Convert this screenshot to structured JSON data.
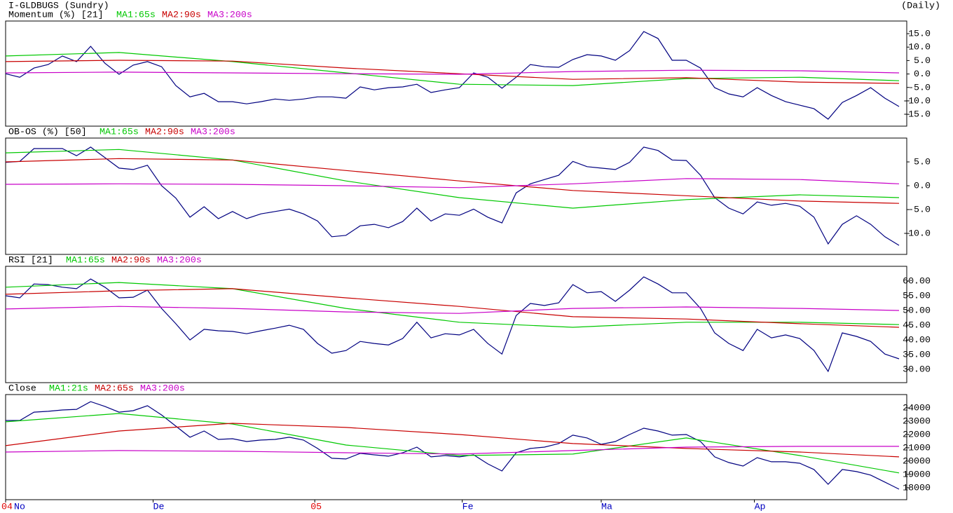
{
  "header": {
    "title": "I-GLDBUGS (Sundry)",
    "period": "(Daily)"
  },
  "chart_data": [
    {
      "type": "line",
      "title": "Momentum (%) [21]",
      "x": [
        0,
        1,
        2,
        3,
        4,
        5,
        6,
        7,
        8,
        9,
        10,
        11,
        12,
        13,
        14,
        15,
        16,
        17,
        18,
        19,
        20,
        21,
        22,
        23,
        24,
        25,
        26,
        27,
        28,
        29,
        30,
        31,
        32,
        33,
        34,
        35,
        36,
        37,
        38,
        39,
        40,
        41,
        42,
        43,
        44,
        45,
        46,
        47,
        48,
        49,
        50,
        51,
        52,
        53,
        54,
        55,
        56,
        57,
        58,
        59,
        60,
        61,
        62,
        63
      ],
      "xlim": [
        0,
        63
      ],
      "ylim": [
        -19.4,
        19.7
      ],
      "yticks": [
        {
          "value": 15,
          "label": "15.0"
        },
        {
          "value": 10,
          "label": "10.0"
        },
        {
          "value": 5,
          "label": "5.0"
        },
        {
          "value": 0,
          "label": "0.0"
        },
        {
          "value": -5,
          "label": "-5.0"
        },
        {
          "value": -10,
          "label": "-10.0"
        },
        {
          "value": -15,
          "label": "-15.0"
        }
      ],
      "series": [
        {
          "color": "#000080",
          "values": [
            0.1,
            -1.2,
            2.2,
            3.5,
            6.7,
            4.6,
            10.3,
            4.0,
            -0.1,
            3.3,
            4.6,
            2.7,
            -4.3,
            -8.5,
            -7.2,
            -10.3,
            -10.3,
            -11.1,
            -10.3,
            -9.3,
            -9.8,
            -9.3,
            -8.5,
            -8.5,
            -9.0,
            -4.8,
            -5.9,
            -5.1,
            -4.8,
            -3.8,
            -6.9,
            -5.9,
            -5.1,
            0.4,
            -1.2,
            -5.3,
            -1.2,
            3.5,
            2.7,
            2.5,
            5.4,
            7.2,
            6.7,
            5.1,
            8.7,
            15.8,
            13.2,
            5.1,
            5.1,
            2.2,
            -5.1,
            -7.4,
            -8.5,
            -5.1,
            -8.0,
            -10.3,
            -11.6,
            -12.9,
            -16.8,
            -10.6,
            -8.0,
            -5.1,
            -9.0,
            -12.1
          ]
        },
        {
          "name": "MA1:65s",
          "color": "#00c800",
          "x": [
            0,
            8,
            16,
            24,
            32,
            40,
            48,
            56,
            63
          ],
          "values": [
            6.7,
            8.0,
            4.6,
            0.4,
            -3.8,
            -4.3,
            -1.7,
            -1.2,
            -2.5
          ]
        },
        {
          "name": "MA2:90s",
          "color": "#c80000",
          "x": [
            0,
            8,
            16,
            24,
            32,
            40,
            48,
            56,
            63
          ],
          "values": [
            4.6,
            5.1,
            4.8,
            2.2,
            0.1,
            -2.0,
            -1.4,
            -3.0,
            -3.5
          ]
        },
        {
          "name": "MA3:200s",
          "color": "#c800c8",
          "x": [
            0,
            8,
            16,
            24,
            32,
            40,
            48,
            56,
            63
          ],
          "values": [
            0.4,
            0.7,
            0.4,
            0.1,
            -0.1,
            0.9,
            1.4,
            1.2,
            0.4
          ]
        }
      ]
    },
    {
      "type": "line",
      "title": "OB-OS (%) [50]",
      "x": [
        0,
        1,
        2,
        3,
        4,
        5,
        6,
        7,
        8,
        9,
        10,
        11,
        12,
        13,
        14,
        15,
        16,
        17,
        18,
        19,
        20,
        21,
        22,
        23,
        24,
        25,
        26,
        27,
        28,
        29,
        30,
        31,
        32,
        33,
        34,
        35,
        36,
        37,
        38,
        39,
        40,
        41,
        42,
        43,
        44,
        45,
        46,
        47,
        48,
        49,
        50,
        51,
        52,
        53,
        54,
        55,
        56,
        57,
        58,
        59,
        60,
        61,
        62,
        63
      ],
      "xlim": [
        0,
        63
      ],
      "ylim": [
        -14.4,
        10
      ],
      "yticks": [
        {
          "value": 5,
          "label": "5.0"
        },
        {
          "value": 0,
          "label": "0.0"
        },
        {
          "value": -5,
          "label": "-5.0"
        },
        {
          "value": -10,
          "label": "-10.0"
        }
      ],
      "series": [
        {
          "color": "#000080",
          "values": [
            4.9,
            5.1,
            7.8,
            7.8,
            7.8,
            6.3,
            8.1,
            5.9,
            3.7,
            3.4,
            4.3,
            0,
            -2.6,
            -6.6,
            -4.4,
            -6.9,
            -5.4,
            -6.9,
            -5.9,
            -5.4,
            -4.9,
            -5.9,
            -7.4,
            -10.7,
            -10.4,
            -8.4,
            -8.1,
            -8.8,
            -7.5,
            -4.7,
            -7.4,
            -5.9,
            -6.2,
            -4.9,
            -6.6,
            -7.8,
            -1.5,
            0.4,
            1.3,
            2.2,
            5.1,
            4.0,
            3.7,
            3.4,
            4.9,
            8.1,
            7.4,
            5.4,
            5.3,
            2.2,
            -2.5,
            -4.7,
            -5.9,
            -3.4,
            -4.1,
            -3.7,
            -4.3,
            -6.6,
            -12.2,
            -8.1,
            -6.3,
            -8.1,
            -10.7,
            -12.5
          ]
        },
        {
          "name": "MA1:65s",
          "color": "#00c800",
          "x": [
            0,
            8,
            16,
            24,
            32,
            40,
            48,
            56,
            63
          ],
          "values": [
            6.9,
            7.6,
            5.4,
            1.0,
            -2.5,
            -4.7,
            -2.9,
            -1.9,
            -2.5
          ]
        },
        {
          "name": "MA2:90s",
          "color": "#c80000",
          "x": [
            0,
            8,
            16,
            24,
            32,
            40,
            48,
            56,
            63
          ],
          "values": [
            5.0,
            5.7,
            5.4,
            3.2,
            1.0,
            -1.0,
            -2.1,
            -3.2,
            -3.7
          ]
        },
        {
          "name": "MA3:200s",
          "color": "#c800c8",
          "x": [
            0,
            8,
            16,
            24,
            32,
            40,
            48,
            56,
            63
          ],
          "values": [
            0.3,
            0.4,
            0.3,
            0.0,
            -0.4,
            0.4,
            1.5,
            1.3,
            0.4
          ]
        }
      ]
    },
    {
      "type": "line",
      "title": "RSI [21]",
      "x": [
        0,
        1,
        2,
        3,
        4,
        5,
        6,
        7,
        8,
        9,
        10,
        11,
        12,
        13,
        14,
        15,
        16,
        17,
        18,
        19,
        20,
        21,
        22,
        23,
        24,
        25,
        26,
        27,
        28,
        29,
        30,
        31,
        32,
        33,
        34,
        35,
        36,
        37,
        38,
        39,
        40,
        41,
        42,
        43,
        44,
        45,
        46,
        47,
        48,
        49,
        50,
        51,
        52,
        53,
        54,
        55,
        56,
        57,
        58,
        59,
        60,
        61,
        62,
        63
      ],
      "xlim": [
        0,
        63
      ],
      "ylim": [
        25.5,
        65
      ],
      "yticks": [
        {
          "value": 60,
          "label": "60.00"
        },
        {
          "value": 55,
          "label": "55.00"
        },
        {
          "value": 50,
          "label": "50.00"
        },
        {
          "value": 45,
          "label": "45.00"
        },
        {
          "value": 40,
          "label": "40.00"
        },
        {
          "value": 35,
          "label": "35.00"
        },
        {
          "value": 30,
          "label": "30.00"
        }
      ],
      "series": [
        {
          "color": "#000080",
          "values": [
            55.0,
            54.3,
            59.0,
            58.8,
            57.9,
            57.4,
            60.7,
            57.9,
            54.3,
            54.5,
            56.9,
            50.7,
            45.5,
            40.0,
            43.6,
            43.1,
            42.9,
            42.1,
            43.1,
            44.0,
            45.0,
            43.6,
            38.8,
            35.5,
            36.4,
            39.5,
            38.8,
            38.3,
            40.5,
            46.0,
            40.7,
            42.1,
            41.7,
            43.6,
            38.8,
            35.2,
            48.3,
            52.4,
            51.7,
            52.6,
            58.8,
            56.0,
            56.4,
            53.1,
            56.9,
            61.4,
            59.0,
            56.0,
            56.0,
            50.7,
            42.4,
            38.8,
            36.4,
            43.6,
            40.7,
            41.7,
            40.5,
            36.4,
            29.3,
            42.4,
            41.2,
            39.5,
            35.2,
            33.6
          ]
        },
        {
          "name": "MA1:65s",
          "color": "#00c800",
          "x": [
            0,
            8,
            16,
            24,
            32,
            40,
            48,
            56,
            63
          ],
          "values": [
            57.9,
            59.5,
            57.4,
            50.7,
            46.0,
            44.3,
            46.0,
            46.0,
            45.2
          ]
        },
        {
          "name": "MA2:90s",
          "color": "#c80000",
          "x": [
            0,
            8,
            16,
            24,
            32,
            40,
            48,
            56,
            63
          ],
          "values": [
            55.5,
            56.7,
            57.4,
            54.3,
            51.4,
            47.9,
            47.1,
            45.5,
            44.3
          ]
        },
        {
          "name": "MA3:200s",
          "color": "#c800c8",
          "x": [
            0,
            8,
            16,
            24,
            32,
            40,
            48,
            56,
            63
          ],
          "values": [
            50.5,
            51.4,
            50.7,
            49.5,
            49.0,
            50.7,
            51.2,
            50.7,
            50.0
          ]
        }
      ]
    },
    {
      "type": "line",
      "title": "Close",
      "x": [
        0,
        1,
        2,
        3,
        4,
        5,
        6,
        7,
        8,
        9,
        10,
        11,
        12,
        13,
        14,
        15,
        16,
        17,
        18,
        19,
        20,
        21,
        22,
        23,
        24,
        25,
        26,
        27,
        28,
        29,
        30,
        31,
        32,
        33,
        34,
        35,
        36,
        37,
        38,
        39,
        40,
        41,
        42,
        43,
        44,
        45,
        46,
        47,
        48,
        49,
        50,
        51,
        52,
        53,
        54,
        55,
        56,
        57,
        58,
        59,
        60,
        61,
        62,
        63
      ],
      "xlim": [
        0,
        63
      ],
      "ylim": [
        17100,
        25000
      ],
      "yticks": [
        24000,
        23000,
        22000,
        21000,
        20000,
        19000,
        18000
      ],
      "xticks": [
        {
          "value": 0,
          "label": "No"
        },
        {
          "value": 10.4,
          "label": "De"
        },
        {
          "value": 32.2,
          "label": "Fe"
        },
        {
          "value": 42,
          "label": "Ma"
        },
        {
          "value": 52.8,
          "label": "Ap"
        }
      ],
      "year_ticks": [
        {
          "value": 0,
          "label": "04"
        },
        {
          "value": 21.8,
          "label": "05"
        }
      ],
      "series": [
        {
          "color": "#000080",
          "values": [
            23050,
            23050,
            23680,
            23740,
            23840,
            23890,
            24470,
            24110,
            23680,
            23790,
            24160,
            23470,
            22630,
            21790,
            22260,
            21630,
            21680,
            21470,
            21580,
            21630,
            21790,
            21580,
            20950,
            20210,
            20160,
            20580,
            20470,
            20370,
            20630,
            21050,
            20320,
            20420,
            20320,
            20470,
            19790,
            19260,
            20630,
            20950,
            21050,
            21320,
            21950,
            21740,
            21260,
            21470,
            22000,
            22470,
            22260,
            21950,
            22000,
            21470,
            20320,
            19890,
            19630,
            20260,
            19950,
            19950,
            19840,
            19370,
            18260,
            19370,
            19210,
            18950,
            18420,
            17890
          ]
        },
        {
          "name": "MA1:21s",
          "color": "#00c800",
          "x": [
            0,
            8,
            16,
            24,
            32,
            40,
            48,
            56,
            63
          ],
          "values": [
            22950,
            23580,
            22790,
            21210,
            20420,
            20530,
            21740,
            20420,
            19110
          ]
        },
        {
          "name": "MA2:65s",
          "color": "#c80000",
          "x": [
            0,
            8,
            16,
            24,
            32,
            40,
            48,
            56,
            63
          ],
          "values": [
            21160,
            22260,
            22840,
            22530,
            22000,
            21320,
            20950,
            20680,
            20320
          ]
        },
        {
          "name": "MA3:200s",
          "color": "#c800c8",
          "x": [
            0,
            8,
            16,
            24,
            32,
            40,
            48,
            56,
            63
          ],
          "values": [
            20680,
            20790,
            20740,
            20630,
            20530,
            20790,
            21050,
            21110,
            21110
          ]
        }
      ]
    }
  ]
}
